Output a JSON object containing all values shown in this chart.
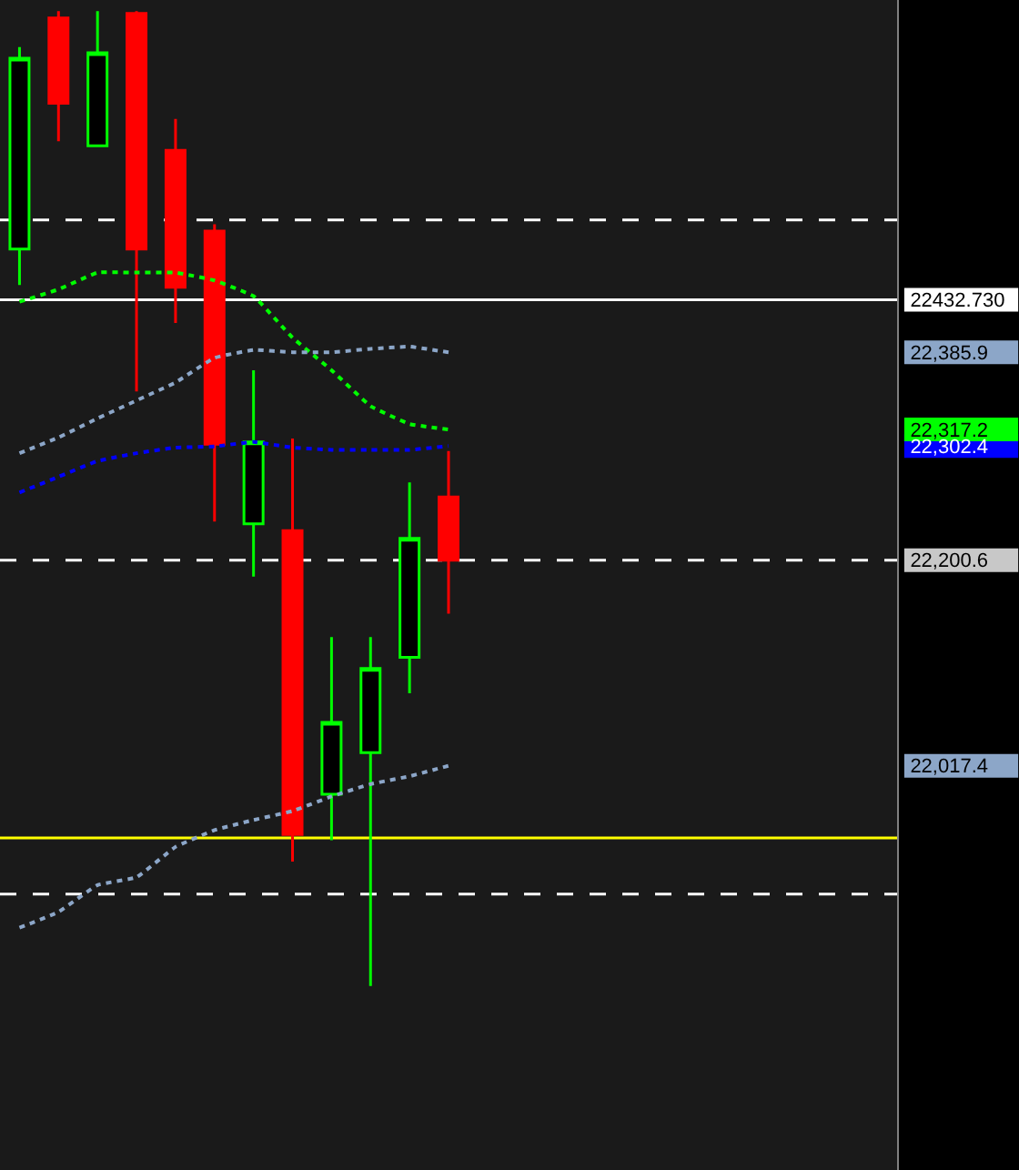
{
  "chart_data": {
    "type": "candlestick",
    "categories": [
      null,
      null,
      null,
      null,
      null,
      null,
      null,
      null,
      null,
      null,
      null,
      null,
      null,
      null,
      null,
      null,
      null,
      null,
      null,
      null,
      null,
      null,
      null
    ],
    "ohlc": [
      [
        22478,
        22658,
        22446,
        22648
      ],
      [
        22684,
        22690,
        22574,
        22608
      ],
      [
        22570,
        22690,
        22570,
        22653
      ],
      [
        22688,
        22690,
        22351,
        22478
      ],
      [
        22566,
        22594,
        22412,
        22444
      ],
      [
        22494,
        22500,
        22235,
        22304
      ],
      [
        22233,
        22370,
        22186,
        22306
      ],
      [
        22227,
        22309,
        21932,
        21956
      ],
      [
        21992,
        22132,
        21951,
        22056
      ],
      [
        22029,
        22132,
        21821,
        22104
      ],
      [
        22114,
        22270,
        22082,
        22220
      ],
      [
        22257,
        22298,
        22153,
        22200.6
      ],
      null,
      null,
      null,
      null,
      null,
      null,
      null,
      null,
      null,
      null,
      null
    ],
    "colors": [
      "#00ff00",
      "#ff0000",
      "#00ff00",
      "#ff0000",
      "#ff0000",
      "#ff0000",
      "#00ff00",
      "#ff0000",
      "#00ff00",
      "#00ff00",
      "#00ff00",
      "#ff0000",
      null,
      null,
      null,
      null,
      null,
      null,
      null,
      null,
      null,
      null,
      null
    ],
    "series": [
      {
        "type": "line",
        "color": "#00ff00",
        "line_style": "dotted",
        "values": [
          22431,
          22442,
          22457,
          22457,
          22457,
          22450,
          22436,
          22399,
          22370,
          22338,
          22322,
          22317.2,
          null,
          null,
          null,
          null,
          null,
          null,
          null,
          null,
          null,
          null,
          null
        ]
      },
      {
        "type": "line",
        "color": "#8ca6c8",
        "line_style": "dotted",
        "values": [
          22296,
          22310,
          22327,
          22343,
          22359,
          22381,
          22388,
          22386,
          22386,
          22389,
          22391,
          22385.9,
          null,
          null,
          null,
          null,
          null,
          null,
          null,
          null,
          null,
          null,
          null
        ]
      },
      {
        "type": "line",
        "color": "#0000ff",
        "line_style": "dotted",
        "values": [
          22261,
          22275,
          22289,
          22296,
          22301,
          22302,
          22306,
          22301,
          22299,
          22299,
          22299,
          22302.4,
          null,
          null,
          null,
          null,
          null,
          null,
          null,
          null,
          null,
          null,
          null
        ]
      },
      {
        "type": "line",
        "color": "#8ca6c8",
        "line_style": "dotted",
        "values": [
          21873,
          21887,
          21911,
          21918,
          21945,
          21960,
          21969,
          21977,
          21990,
          22001,
          22008,
          22017.4,
          null,
          null,
          null,
          null,
          null,
          null,
          null,
          null,
          null,
          null,
          null
        ]
      }
    ],
    "ref_lines": [
      {
        "axis": "y",
        "value": 22432.73,
        "color": "#ffffff",
        "line_style": "solid"
      },
      {
        "axis": "y",
        "value": 22504,
        "color": "#ffffff",
        "line_style": "dashed"
      },
      {
        "axis": "y",
        "value": 22200.6,
        "color": "#ffffff",
        "line_style": "dashed"
      },
      {
        "axis": "y",
        "value": 21903,
        "color": "#ffffff",
        "line_style": "dashed"
      },
      {
        "axis": "y",
        "value": 21953,
        "color": "#ffff00",
        "line_style": "solid"
      }
    ],
    "ylim": [
      21657,
      22700
    ],
    "yticks": [
      {
        "value": 22432.73,
        "label": "22432.730"
      },
      {
        "value": 22385.9,
        "label": "22,385.9"
      },
      {
        "value": 22317.2,
        "label": "22,317.2"
      },
      {
        "value": 22302.4,
        "label": "22,302.4"
      },
      {
        "value": 22200.6,
        "label": "22,200.6"
      },
      {
        "value": 22017.4,
        "label": "22,017.4"
      }
    ],
    "tick_labels": "y",
    "grid": false
  }
}
